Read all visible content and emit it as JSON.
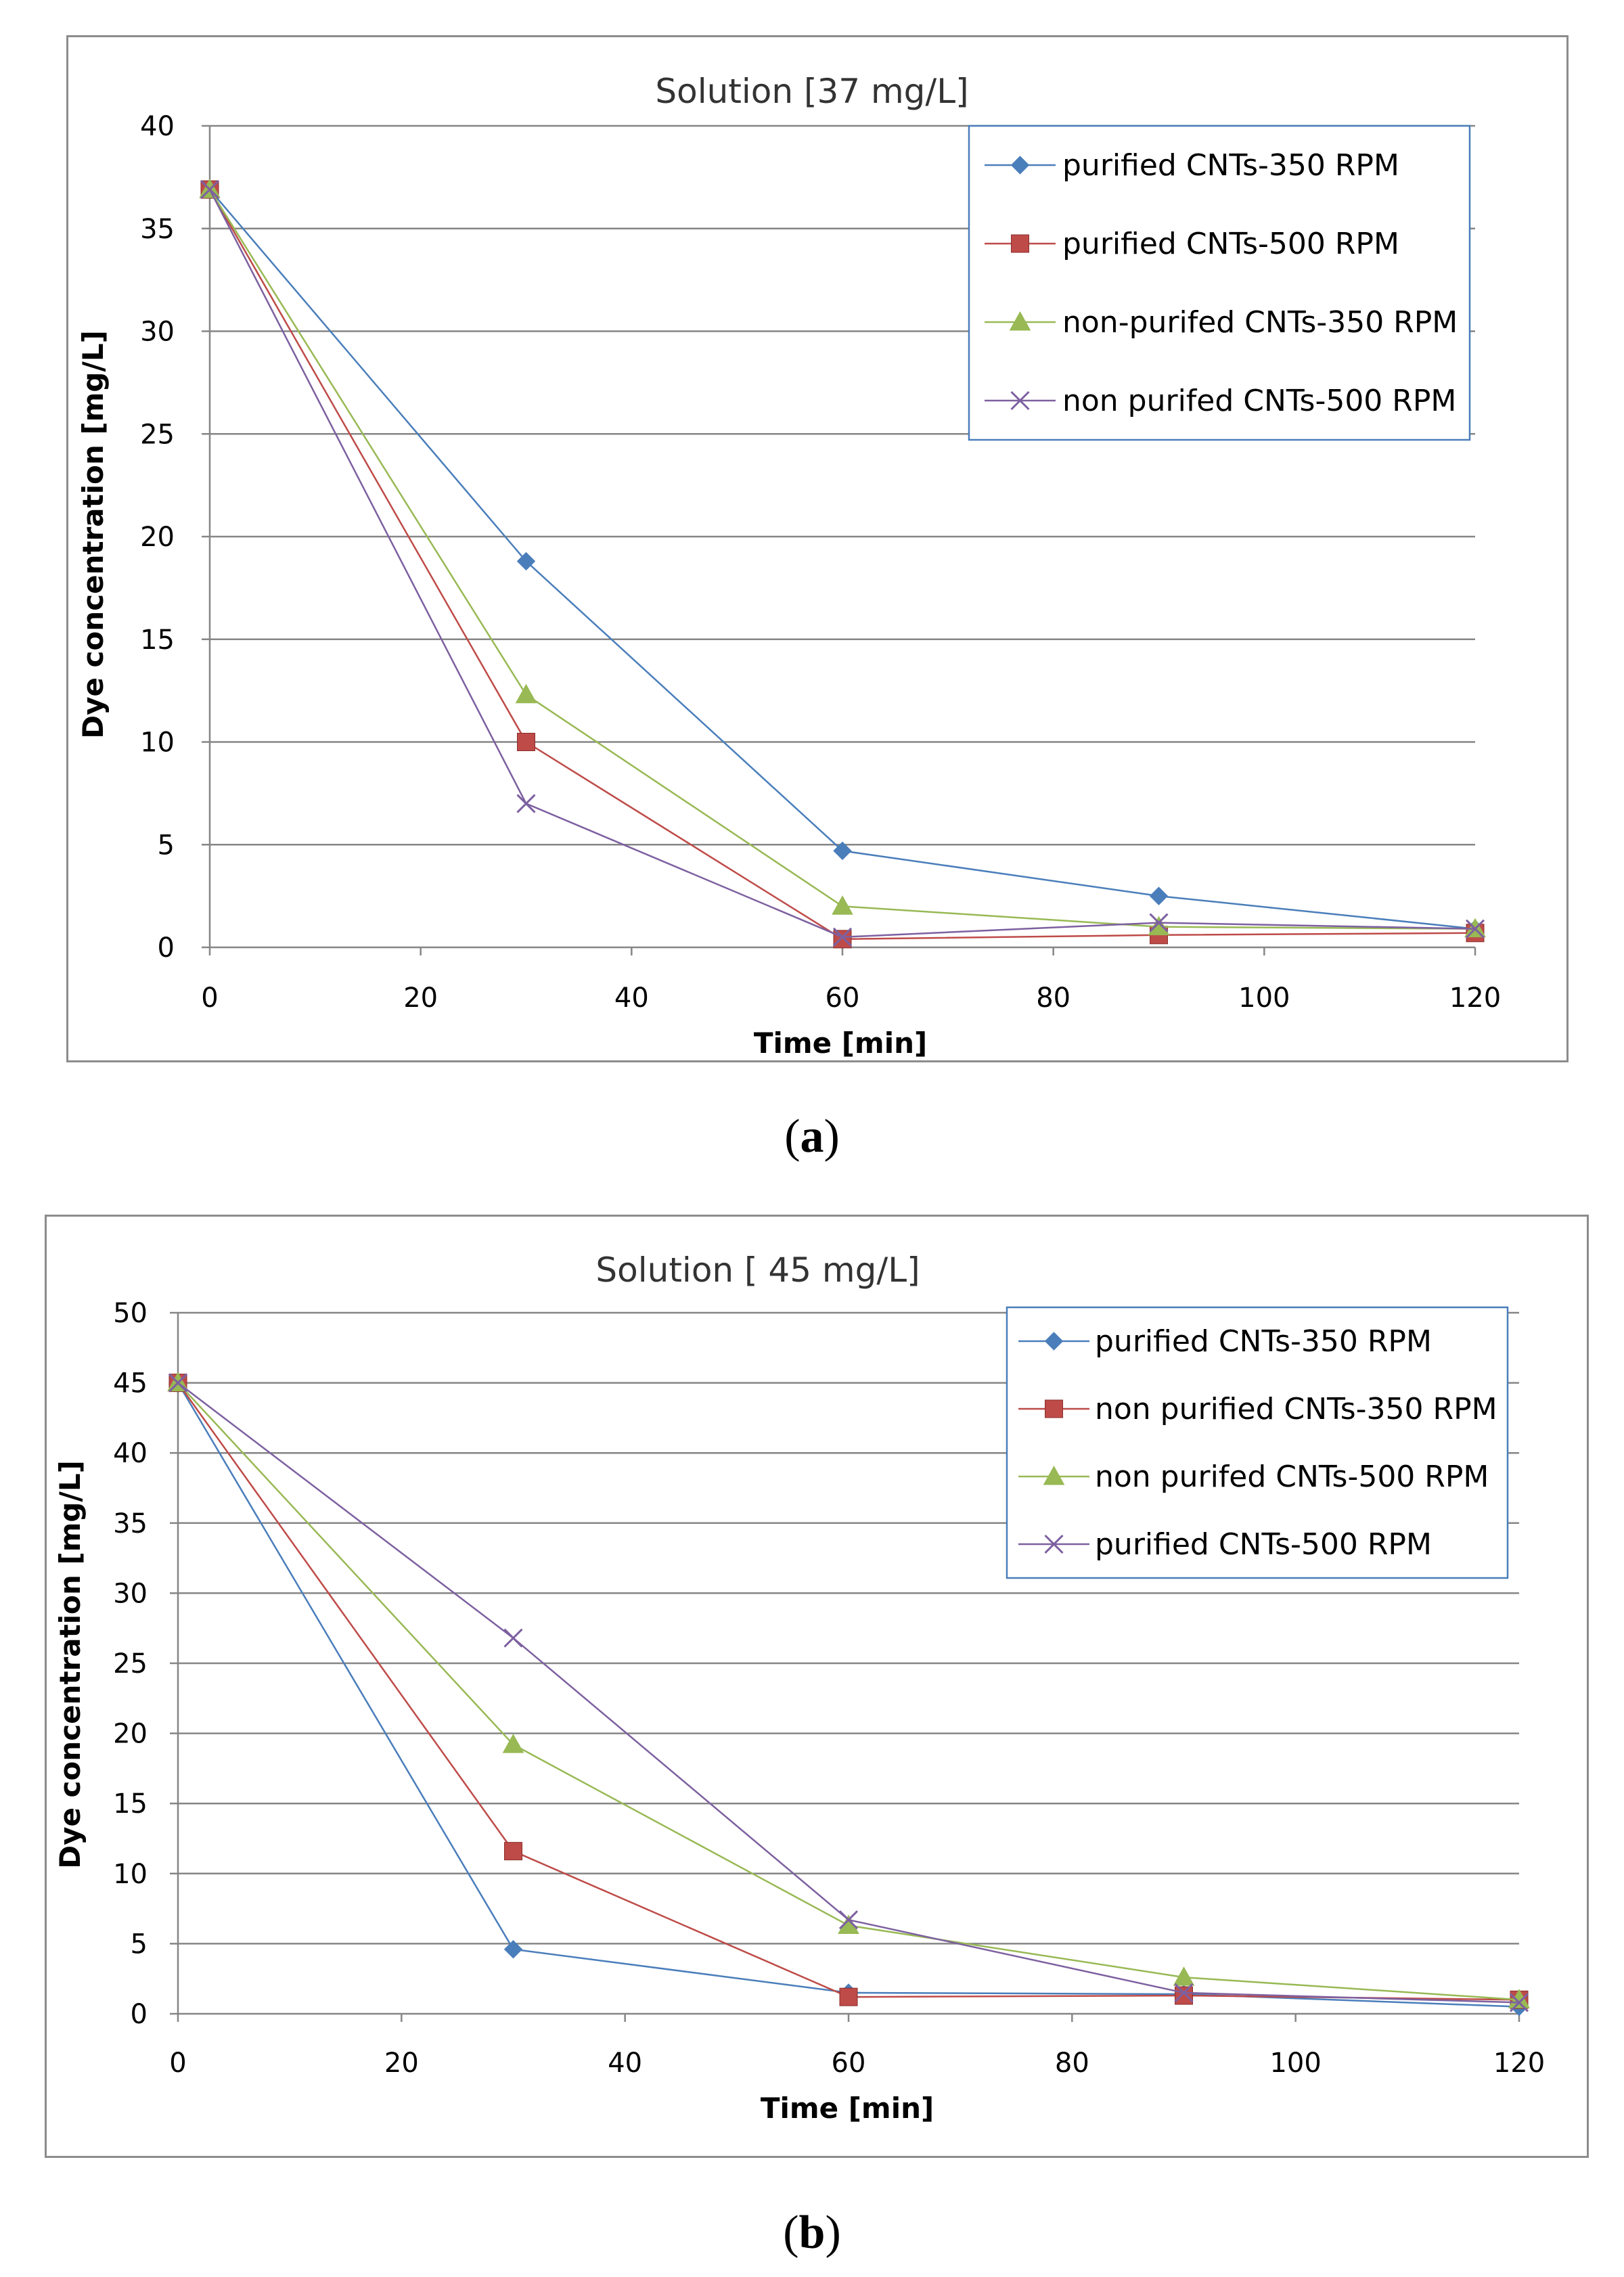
{
  "chart_data": [
    {
      "panel": "a",
      "type": "line",
      "caption_letter": "a",
      "title": "Solution [37 mg/L]",
      "xlabel": "Time [min]",
      "ylabel": "Dye concentration [mg/L]",
      "xlim": [
        0,
        120
      ],
      "ylim": [
        0,
        40
      ],
      "xticks": [
        0,
        20,
        40,
        60,
        80,
        100,
        120
      ],
      "yticks": [
        0,
        5,
        10,
        15,
        20,
        25,
        30,
        35,
        40
      ],
      "grid": "horizontal",
      "legend_position": "top-right",
      "series": [
        {
          "name": "purified CNTs-350 RPM",
          "color": "#4a7ebb",
          "marker": "diamond",
          "x": [
            0,
            30,
            60,
            90,
            120
          ],
          "y": [
            36.9,
            18.8,
            4.7,
            2.5,
            0.9
          ]
        },
        {
          "name": "purified CNTs-500 RPM",
          "color": "#be4b48",
          "marker": "square",
          "x": [
            0,
            30,
            60,
            90,
            120
          ],
          "y": [
            36.9,
            10.0,
            0.4,
            0.6,
            0.7
          ]
        },
        {
          "name": "non-purifed CNTs-350 RPM",
          "color": "#98b954",
          "marker": "triangle",
          "x": [
            0,
            30,
            60,
            90,
            120
          ],
          "y": [
            36.9,
            12.3,
            2.0,
            1.0,
            0.9
          ]
        },
        {
          "name": "non purifed CNTs-500 RPM",
          "color": "#7d60a0",
          "marker": "x",
          "x": [
            0,
            30,
            60,
            90,
            120
          ],
          "y": [
            36.9,
            7.0,
            0.5,
            1.2,
            0.9
          ]
        }
      ]
    },
    {
      "panel": "b",
      "type": "line",
      "caption_letter": "b",
      "title": "Solution [ 45 mg/L]",
      "xlabel": "Time [min]",
      "ylabel": "Dye concentration [mg/L]",
      "xlim": [
        0,
        120
      ],
      "ylim": [
        0,
        50
      ],
      "xticks": [
        0,
        20,
        40,
        60,
        80,
        100,
        120
      ],
      "yticks": [
        0,
        5,
        10,
        15,
        20,
        25,
        30,
        35,
        40,
        45,
        50
      ],
      "grid": "horizontal",
      "legend_position": "top-right",
      "series": [
        {
          "name": "purified CNTs-350 RPM",
          "color": "#4a7ebb",
          "marker": "diamond",
          "x": [
            0,
            30,
            60,
            90,
            120
          ],
          "y": [
            45.0,
            4.6,
            1.5,
            1.4,
            0.5
          ]
        },
        {
          "name": "non purified CNTs-350 RPM",
          "color": "#be4b48",
          "marker": "square",
          "x": [
            0,
            30,
            60,
            90,
            120
          ],
          "y": [
            45.0,
            11.6,
            1.2,
            1.3,
            1.0
          ]
        },
        {
          "name": "non purifed CNTs-500 RPM",
          "color": "#98b954",
          "marker": "triangle",
          "x": [
            0,
            30,
            60,
            90,
            120
          ],
          "y": [
            45.0,
            19.2,
            6.3,
            2.6,
            1.0
          ]
        },
        {
          "name": "purified CNTs-500 RPM",
          "color": "#7d60a0",
          "marker": "x",
          "x": [
            0,
            30,
            60,
            90,
            120
          ],
          "y": [
            45.0,
            26.8,
            6.7,
            1.5,
            0.8
          ]
        }
      ]
    }
  ]
}
